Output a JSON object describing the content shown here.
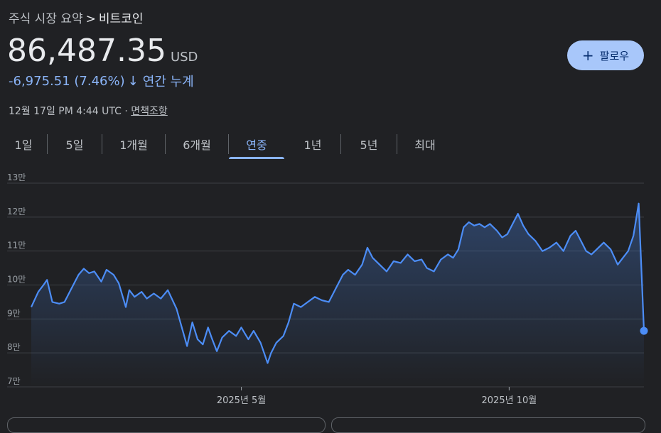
{
  "breadcrumb": {
    "parent": "주식 시장 요약",
    "separator": ">",
    "current": "비트코인"
  },
  "price": {
    "value": "86,487.35",
    "currency": "USD"
  },
  "change": {
    "amount": "-6,975.51",
    "percent": "(7.46%)",
    "arrow": "↓",
    "period": "연간 누계"
  },
  "meta": {
    "timestamp": "12월 17일 PM 4:44 UTC",
    "separator": "·",
    "disclaimer": "면책조항"
  },
  "follow": {
    "icon": "plus-icon",
    "label": "팔로우"
  },
  "tabs": [
    {
      "label": "1일",
      "active": false
    },
    {
      "label": "5일",
      "active": false
    },
    {
      "label": "1개월",
      "active": false
    },
    {
      "label": "6개월",
      "active": false
    },
    {
      "label": "연중",
      "active": true
    },
    {
      "label": "1년",
      "active": false
    },
    {
      "label": "5년",
      "active": false
    },
    {
      "label": "최대",
      "active": false
    }
  ],
  "colors": {
    "line": "#4c8df6",
    "text": "#e8eaed",
    "muted": "#bdc1c6",
    "accent": "#8ab4f8"
  },
  "chart_data": {
    "type": "area",
    "title": "",
    "xlabel": "",
    "ylabel": "",
    "yticks": [
      {
        "value": 130000,
        "label": "13만"
      },
      {
        "value": 120000,
        "label": "12만"
      },
      {
        "value": 110000,
        "label": "11만"
      },
      {
        "value": 100000,
        "label": "10만"
      },
      {
        "value": 90000,
        "label": "9만"
      },
      {
        "value": 80000,
        "label": "8만"
      },
      {
        "value": 70000,
        "label": "7만"
      }
    ],
    "ylim": [
      70000,
      130000
    ],
    "xlim": [
      "2025-01-01",
      "2025-12-17"
    ],
    "xticks": [
      {
        "date": "2025-05-01",
        "label": "2025년 5월"
      },
      {
        "date": "2025-10-01",
        "label": "2025년 10월"
      }
    ],
    "grid": true,
    "series": [
      {
        "values": [
          [
            "2025-01-01",
            93500
          ],
          [
            "2025-01-05",
            98000
          ],
          [
            "2025-01-08",
            100000
          ],
          [
            "2025-01-10",
            101500
          ],
          [
            "2025-01-13",
            95000
          ],
          [
            "2025-01-17",
            94500
          ],
          [
            "2025-01-20",
            95000
          ],
          [
            "2025-01-24",
            99000
          ],
          [
            "2025-01-28",
            103000
          ],
          [
            "2025-01-31",
            104800
          ],
          [
            "2025-02-03",
            103500
          ],
          [
            "2025-02-06",
            104000
          ],
          [
            "2025-02-10",
            101000
          ],
          [
            "2025-02-13",
            104500
          ],
          [
            "2025-02-17",
            103000
          ],
          [
            "2025-02-20",
            100500
          ],
          [
            "2025-02-24",
            93500
          ],
          [
            "2025-02-26",
            98500
          ],
          [
            "2025-03-01",
            96500
          ],
          [
            "2025-03-05",
            98000
          ],
          [
            "2025-03-08",
            96000
          ],
          [
            "2025-03-12",
            97500
          ],
          [
            "2025-03-16",
            96000
          ],
          [
            "2025-03-20",
            98500
          ],
          [
            "2025-03-25",
            93000
          ],
          [
            "2025-03-28",
            87500
          ],
          [
            "2025-03-31",
            82000
          ],
          [
            "2025-04-03",
            89000
          ],
          [
            "2025-04-06",
            84000
          ],
          [
            "2025-04-09",
            82500
          ],
          [
            "2025-04-12",
            87500
          ],
          [
            "2025-04-14",
            84500
          ],
          [
            "2025-04-17",
            80500
          ],
          [
            "2025-04-20",
            84500
          ],
          [
            "2025-04-24",
            86500
          ],
          [
            "2025-04-28",
            85000
          ],
          [
            "2025-05-01",
            87500
          ],
          [
            "2025-05-05",
            84000
          ],
          [
            "2025-05-08",
            86500
          ],
          [
            "2025-05-12",
            83000
          ],
          [
            "2025-05-16",
            77000
          ],
          [
            "2025-05-18",
            80000
          ],
          [
            "2025-05-21",
            83000
          ],
          [
            "2025-05-25",
            85000
          ],
          [
            "2025-05-28",
            89000
          ],
          [
            "2025-05-31",
            94500
          ],
          [
            "2025-06-04",
            93500
          ],
          [
            "2025-06-08",
            95000
          ],
          [
            "2025-06-12",
            96500
          ],
          [
            "2025-06-16",
            95500
          ],
          [
            "2025-06-20",
            95000
          ],
          [
            "2025-06-24",
            99000
          ],
          [
            "2025-06-28",
            103000
          ],
          [
            "2025-07-01",
            104500
          ],
          [
            "2025-07-05",
            103000
          ],
          [
            "2025-07-09",
            106000
          ],
          [
            "2025-07-12",
            111000
          ],
          [
            "2025-07-15",
            108000
          ],
          [
            "2025-07-19",
            106000
          ],
          [
            "2025-07-23",
            104000
          ],
          [
            "2025-07-27",
            107000
          ],
          [
            "2025-07-31",
            106500
          ],
          [
            "2025-08-04",
            109000
          ],
          [
            "2025-08-08",
            107000
          ],
          [
            "2025-08-12",
            107500
          ],
          [
            "2025-08-15",
            105000
          ],
          [
            "2025-08-19",
            104000
          ],
          [
            "2025-08-23",
            107500
          ],
          [
            "2025-08-27",
            109000
          ],
          [
            "2025-08-30",
            108000
          ],
          [
            "2025-09-02",
            110500
          ],
          [
            "2025-09-05",
            117000
          ],
          [
            "2025-09-08",
            118500
          ],
          [
            "2025-09-11",
            117500
          ],
          [
            "2025-09-14",
            118000
          ],
          [
            "2025-09-17",
            117000
          ],
          [
            "2025-09-20",
            118000
          ],
          [
            "2025-09-24",
            116000
          ],
          [
            "2025-09-27",
            114000
          ],
          [
            "2025-09-30",
            115000
          ],
          [
            "2025-10-03",
            118000
          ],
          [
            "2025-10-06",
            121000
          ],
          [
            "2025-10-09",
            117500
          ],
          [
            "2025-10-12",
            115000
          ],
          [
            "2025-10-16",
            113000
          ],
          [
            "2025-10-20",
            110000
          ],
          [
            "2025-10-24",
            111000
          ],
          [
            "2025-10-28",
            112500
          ],
          [
            "2025-11-01",
            110000
          ],
          [
            "2025-11-05",
            114500
          ],
          [
            "2025-11-08",
            116000
          ],
          [
            "2025-11-11",
            113000
          ],
          [
            "2025-11-14",
            110000
          ],
          [
            "2025-11-17",
            109000
          ],
          [
            "2025-11-20",
            110500
          ],
          [
            "2025-11-24",
            112500
          ],
          [
            "2025-11-28",
            110500
          ],
          [
            "2025-12-02",
            106000
          ],
          [
            "2025-12-05",
            108000
          ],
          [
            "2025-12-08",
            110000
          ],
          [
            "2025-12-11",
            114500
          ],
          [
            "2025-12-14",
            124000
          ],
          [
            "2025-12-17",
            86500
          ]
        ]
      }
    ]
  }
}
